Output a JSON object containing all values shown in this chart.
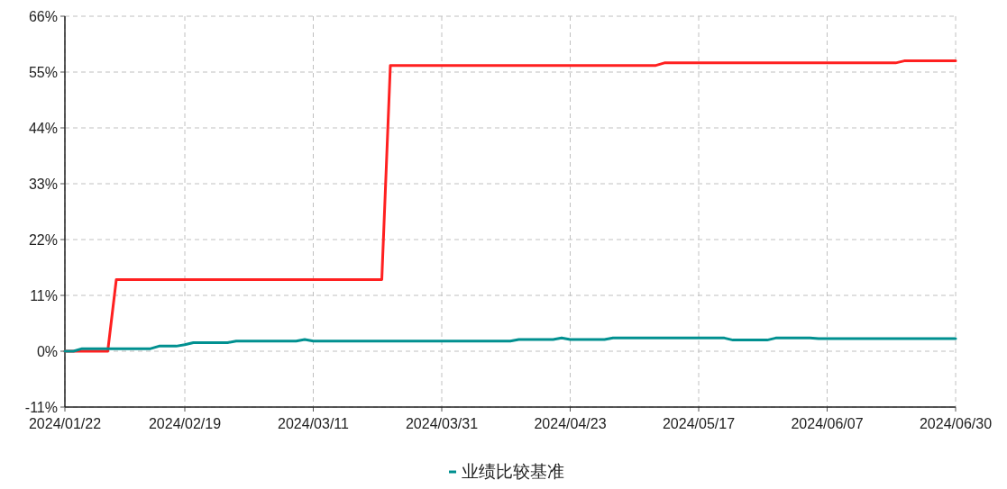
{
  "chart_data": {
    "type": "line",
    "ylim": [
      -11,
      66
    ],
    "categories": [
      "2024/01/22",
      null,
      null,
      null,
      null,
      null,
      null,
      null,
      null,
      null,
      null,
      null,
      null,
      null,
      "2024/02/19",
      null,
      null,
      null,
      null,
      null,
      null,
      null,
      null,
      null,
      null,
      null,
      null,
      null,
      null,
      "2024/03/11",
      null,
      null,
      null,
      null,
      null,
      null,
      null,
      null,
      null,
      null,
      null,
      null,
      null,
      null,
      "2024/03/31",
      null,
      null,
      null,
      null,
      null,
      null,
      null,
      null,
      null,
      null,
      null,
      null,
      null,
      null,
      "2024/04/23",
      null,
      null,
      null,
      null,
      null,
      null,
      null,
      null,
      null,
      null,
      null,
      null,
      null,
      null,
      "2024/05/17",
      null,
      null,
      null,
      null,
      null,
      null,
      null,
      null,
      null,
      null,
      null,
      null,
      null,
      null,
      "2024/06/07",
      null,
      null,
      null,
      null,
      null,
      null,
      null,
      null,
      null,
      null,
      null,
      null,
      null,
      null,
      "2024/06/30"
    ],
    "yticks": [
      {
        "value": -11,
        "label": "-11%"
      },
      {
        "value": 0,
        "label": "0%"
      },
      {
        "value": 11,
        "label": "11%"
      },
      {
        "value": 22,
        "label": "22%"
      },
      {
        "value": 33,
        "label": "33%"
      },
      {
        "value": 44,
        "label": "44%"
      },
      {
        "value": 55,
        "label": "55%"
      },
      {
        "value": 66,
        "label": "66%"
      }
    ],
    "grid": true,
    "legend": "bottom",
    "marker": "none",
    "line_style": "solid",
    "series": [
      {
        "color": "#ff2020",
        "values": [
          0,
          0,
          0,
          0,
          0,
          0,
          14.1,
          14.1,
          14.1,
          14.1,
          14.1,
          14.1,
          14.1,
          14.1,
          14.1,
          14.1,
          14.1,
          14.1,
          14.1,
          14.1,
          14.1,
          14.1,
          14.1,
          14.1,
          14.1,
          14.1,
          14.1,
          14.1,
          14.1,
          14.1,
          14.1,
          14.1,
          14.1,
          14.1,
          14.1,
          14.1,
          14.1,
          14.1,
          56.3,
          56.3,
          56.3,
          56.3,
          56.3,
          56.3,
          56.3,
          56.3,
          56.3,
          56.3,
          56.3,
          56.3,
          56.3,
          56.3,
          56.3,
          56.3,
          56.3,
          56.3,
          56.3,
          56.3,
          56.3,
          56.3,
          56.3,
          56.3,
          56.3,
          56.3,
          56.3,
          56.3,
          56.3,
          56.3,
          56.3,
          56.3,
          56.8,
          56.8,
          56.8,
          56.8,
          56.8,
          56.8,
          56.8,
          56.8,
          56.8,
          56.8,
          56.8,
          56.8,
          56.8,
          56.8,
          56.8,
          56.8,
          56.8,
          56.8,
          56.8,
          56.8,
          56.8,
          56.8,
          56.8,
          56.8,
          56.8,
          56.8,
          56.8,
          56.8,
          57.2,
          57.2,
          57.2,
          57.2,
          57.2,
          57.2,
          57.2
        ]
      },
      {
        "name": "业绩比较基准",
        "color": "#009090",
        "values": [
          0,
          0,
          0.5,
          0.5,
          0.5,
          0.5,
          0.5,
          0.5,
          0.5,
          0.5,
          0.5,
          1.0,
          1.0,
          1.0,
          1.3,
          1.7,
          1.7,
          1.7,
          1.7,
          1.7,
          2.0,
          2.0,
          2.0,
          2.0,
          2.0,
          2.0,
          2.0,
          2.0,
          2.3,
          2.0,
          2.0,
          2.0,
          2.0,
          2.0,
          2.0,
          2.0,
          2.0,
          2.0,
          2.0,
          2.0,
          2.0,
          2.0,
          2.0,
          2.0,
          2.0,
          2.0,
          2.0,
          2.0,
          2.0,
          2.0,
          2.0,
          2.0,
          2.0,
          2.3,
          2.3,
          2.3,
          2.3,
          2.3,
          2.6,
          2.3,
          2.3,
          2.3,
          2.3,
          2.3,
          2.6,
          2.6,
          2.6,
          2.6,
          2.6,
          2.6,
          2.6,
          2.6,
          2.6,
          2.6,
          2.6,
          2.6,
          2.6,
          2.6,
          2.2,
          2.2,
          2.2,
          2.2,
          2.2,
          2.6,
          2.6,
          2.6,
          2.6,
          2.6,
          2.5,
          2.5,
          2.5,
          2.5,
          2.5,
          2.5,
          2.5,
          2.5,
          2.5,
          2.5,
          2.5,
          2.5,
          2.5,
          2.5,
          2.5,
          2.5,
          2.5
        ]
      }
    ]
  }
}
